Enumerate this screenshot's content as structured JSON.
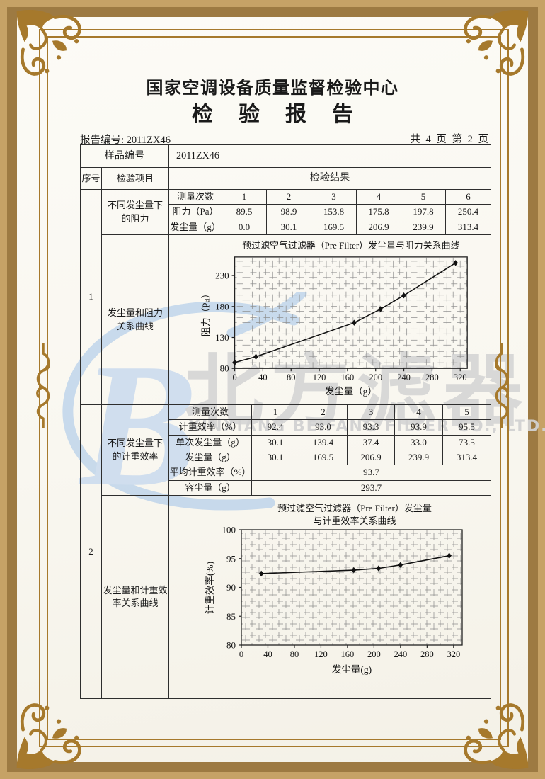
{
  "header": {
    "center_name": "国家空调设备质量监督检验中心",
    "report_title": "检验报告",
    "report_no": "报告编号: 2011ZX46",
    "page_info": "共 4 页 第 2 页"
  },
  "table": {
    "sample_label": "样品编号",
    "sample_value": "2011ZX46",
    "seq_header": "序号",
    "item_header": "检验项目",
    "result_header": "检验结果",
    "item1": {
      "seq": "1",
      "name1": "不同发尘量下",
      "name2": "的阻力",
      "curve1": "发尘量和阻力",
      "curve2": "关系曲线"
    },
    "item2": {
      "seq": "2",
      "name1": "不同发尘量下",
      "name2": "的计重效率",
      "curve1": "发尘量和计重效",
      "curve2": "率关系曲线"
    },
    "m1": {
      "label0": "测量次数",
      "label1": "阻力（Pa）",
      "label2": "发尘量（g）",
      "counts": [
        "1",
        "2",
        "3",
        "4",
        "5",
        "6"
      ],
      "resistance": [
        "89.5",
        "98.9",
        "153.8",
        "175.8",
        "197.8",
        "250.4"
      ],
      "dust": [
        "0.0",
        "30.1",
        "169.5",
        "206.9",
        "239.9",
        "313.4"
      ]
    },
    "m2": {
      "label0": "测量次数",
      "label1": "计重效率（%）",
      "label2": "单次发尘量（g）",
      "label3": "发尘量（g）",
      "label4": "平均计重效率（%）",
      "label5": "容尘量（g）",
      "counts": [
        "1",
        "2",
        "3",
        "4",
        "5"
      ],
      "efficiency": [
        "92.4",
        "93.0",
        "93.3",
        "93.9",
        "95.5"
      ],
      "single_dust": [
        "30.1",
        "139.4",
        "37.4",
        "33.0",
        "73.5"
      ],
      "total_dust": [
        "30.1",
        "169.5",
        "206.9",
        "239.9",
        "313.4"
      ],
      "avg_efficiency": "93.7",
      "dust_capacity": "293.7"
    }
  },
  "watermark": {
    "cjk_text": "北方滤器",
    "latin_text": "XINXIANG BEIFANG FILTER CO., LTD.",
    "logo_letter": "B"
  },
  "chart_data": [
    {
      "type": "line",
      "title": "预过滤空气过滤器（Pre Filter）发尘量与阻力关系曲线",
      "xlabel": "发尘量（g）",
      "ylabel": "阻力（Pa）",
      "x": [
        0,
        30.1,
        169.5,
        206.9,
        239.9,
        313.4
      ],
      "y": [
        89.5,
        98.9,
        153.8,
        175.8,
        197.8,
        250.4
      ],
      "xlim": [
        0,
        330
      ],
      "ylim": [
        80,
        260
      ],
      "xticks": [
        0,
        40,
        80,
        120,
        160,
        200,
        240,
        280,
        320
      ],
      "yticks": [
        80,
        130,
        180,
        230
      ],
      "marker": "diamond",
      "grid": true,
      "legend": "none"
    },
    {
      "type": "line",
      "title": "预过滤空气过滤器（Pre Filter）发尘量",
      "title2": "与计重效率关系曲线",
      "xlabel": "发尘量(g)",
      "ylabel": "计重效率(%)",
      "x": [
        30.1,
        169.5,
        206.9,
        239.9,
        313.4
      ],
      "y": [
        92.4,
        93.0,
        93.3,
        93.9,
        95.5
      ],
      "xlim": [
        0,
        333
      ],
      "ylim": [
        80,
        100
      ],
      "xticks": [
        0,
        40,
        80,
        120,
        160,
        200,
        240,
        280,
        320
      ],
      "yticks": [
        80,
        85,
        90,
        95,
        100
      ],
      "marker": "diamond",
      "grid": true,
      "legend": "none"
    }
  ],
  "colors": {
    "frame_gold": "#a6792c",
    "margin_tan": "#c6a266",
    "margin_dark_tan": "#9d7a42",
    "watermark_blue": "#bcd3eb",
    "watermark_gray": "#d5d5d5",
    "ink": "#1a1a1a"
  }
}
